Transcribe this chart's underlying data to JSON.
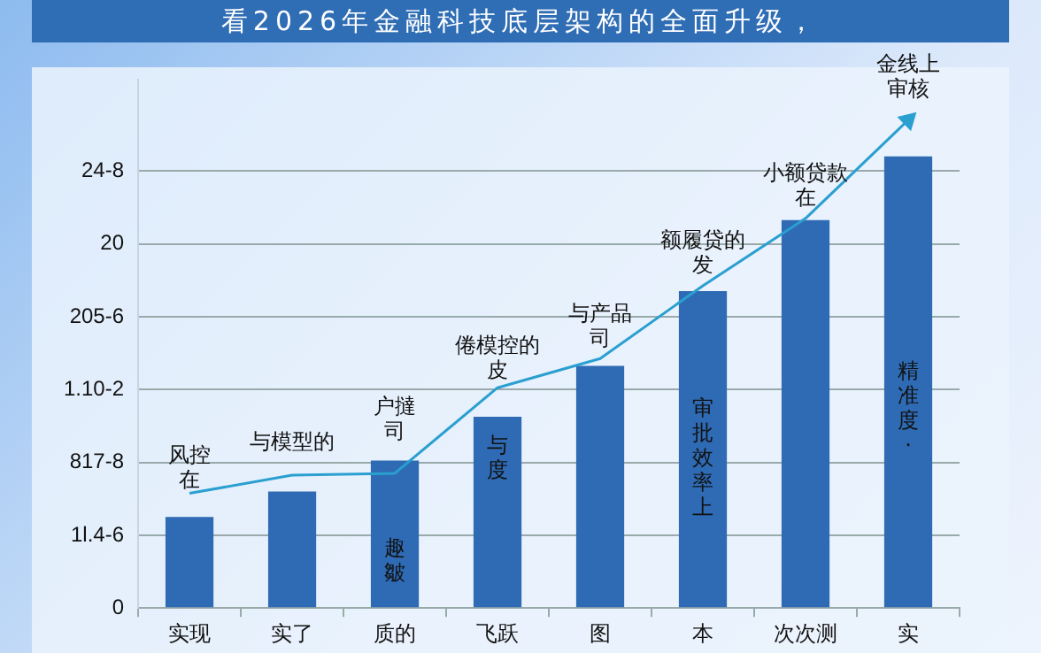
{
  "chart_data": {
    "type": "bar",
    "title": "看2026年金融科技底层架构的全面升级，",
    "categories": [
      "实现",
      "实了",
      "质的",
      "飞跃",
      "图",
      "本",
      "次次测",
      "实"
    ],
    "series": [
      {
        "color": "#2e6bb4",
        "values": [
          5.0,
          6.4,
          8.1,
          10.5,
          13.3,
          17.4,
          21.3,
          24.8
        ]
      },
      {
        "type": "line",
        "color": "#2a9fd0",
        "values": [
          6.3,
          7.3,
          7.4,
          12.1,
          13.7,
          17.7,
          21.4,
          26.8
        ]
      }
    ],
    "ylim": [
      0,
      29
    ],
    "yticks": [
      0,
      {
        "value": 4,
        "label": "1l.4-6"
      },
      {
        "value": 8,
        "label": "817-8"
      },
      {
        "value": 12,
        "label": "1.10-2"
      },
      {
        "value": 16,
        "label": "205-6"
      },
      20,
      {
        "value": 24,
        "label": "24-8"
      }
    ],
    "grid": "y",
    "legend": false,
    "marker": "none",
    "line_style": "solid",
    "annotations": [
      "风控在",
      "与模型的",
      "户撻司",
      "倦模控的皮",
      "与产品司",
      "额履贷的发",
      "小额贷款在",
      "金线上审核",
      "趣皺",
      "与度",
      "审批效率上",
      "精准度·"
    ]
  }
}
